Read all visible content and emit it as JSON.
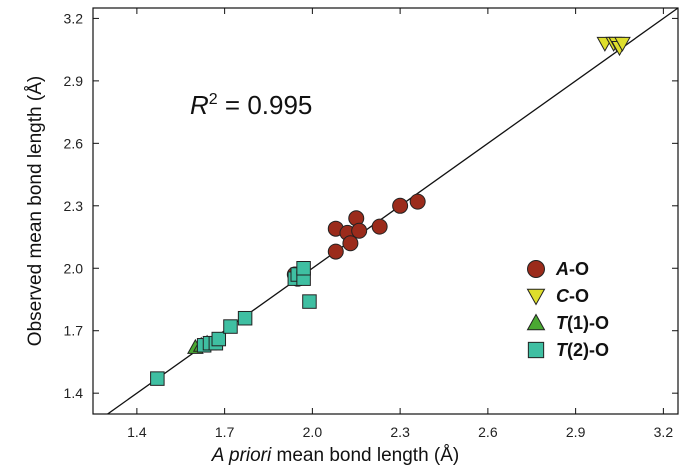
{
  "chart_data": {
    "type": "scatter",
    "xlabel": {
      "italic": "A priori",
      "rest": " mean bond length (Å)"
    },
    "ylabel": "Observed mean bond length (Å)",
    "xlim": [
      1.25,
      3.25
    ],
    "ylim": [
      1.3,
      3.25
    ],
    "xticks": [
      1.4,
      1.7,
      2.0,
      2.3,
      2.6,
      2.9,
      3.2
    ],
    "yticks": [
      1.4,
      1.7,
      2.0,
      2.3,
      2.6,
      2.9,
      3.2
    ],
    "tick_decimals": 1,
    "annotation": {
      "R": "R",
      "sup": "2",
      "text": " = 0.995"
    },
    "fit_line": {
      "x": [
        1.25,
        3.25
      ],
      "y": [
        1.25,
        3.25
      ]
    },
    "grid": false,
    "legend_position": "right-center",
    "series": [
      {
        "name": "A-O",
        "name_italic": "A",
        "name_rest": "-O",
        "marker": "circle",
        "color": "#9b2b1b",
        "points": [
          [
            2.08,
            2.19
          ],
          [
            2.08,
            2.08
          ],
          [
            2.12,
            2.17
          ],
          [
            2.13,
            2.12
          ],
          [
            2.15,
            2.24
          ],
          [
            2.16,
            2.18
          ],
          [
            2.23,
            2.2
          ],
          [
            2.3,
            2.3
          ],
          [
            2.36,
            2.32
          ],
          [
            1.94,
            1.97
          ],
          [
            1.95,
            1.95
          ]
        ]
      },
      {
        "name": "C-O",
        "name_italic": "C",
        "name_rest": "-O",
        "marker": "triangle-down",
        "color": "#dede2c",
        "points": [
          [
            3.0,
            3.08
          ],
          [
            3.03,
            3.08
          ],
          [
            3.04,
            3.08
          ],
          [
            3.05,
            3.06
          ],
          [
            3.06,
            3.08
          ]
        ]
      },
      {
        "name": "T(1)-O",
        "name_italic": "T",
        "name_rest": "(1)-O",
        "marker": "triangle-up",
        "color": "#4aa832",
        "points": [
          [
            1.6,
            1.62
          ],
          [
            1.62,
            1.63
          ],
          [
            1.64,
            1.64
          ]
        ]
      },
      {
        "name": "T(2)-O",
        "name_italic": "T",
        "name_rest": "(2)-O",
        "marker": "square",
        "color": "#3fbfa2",
        "points": [
          [
            1.47,
            1.47
          ],
          [
            1.63,
            1.63
          ],
          [
            1.65,
            1.64
          ],
          [
            1.67,
            1.64
          ],
          [
            1.68,
            1.66
          ],
          [
            1.72,
            1.72
          ],
          [
            1.77,
            1.76
          ],
          [
            1.94,
            1.95
          ],
          [
            1.95,
            1.97
          ],
          [
            1.97,
            1.95
          ],
          [
            1.97,
            2.0
          ],
          [
            1.99,
            1.84
          ]
        ]
      }
    ]
  }
}
